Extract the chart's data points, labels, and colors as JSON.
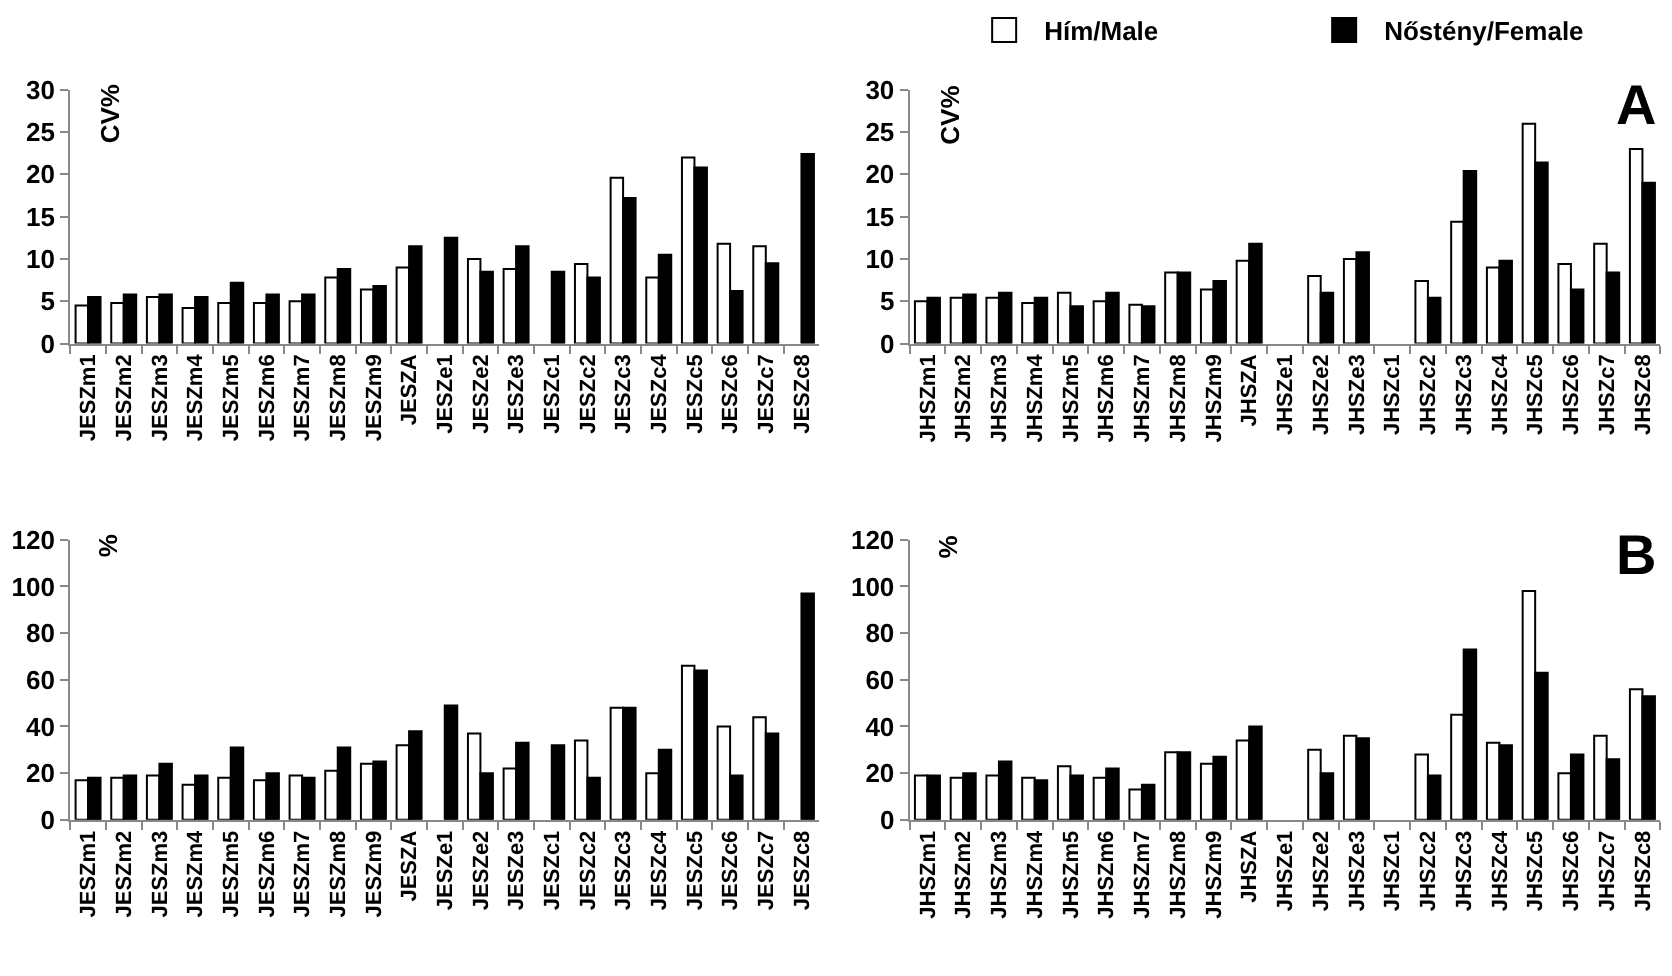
{
  "chart_data": [
    {
      "type": "bar",
      "ylabel": "CV%",
      "categories": [
        "JESZm1",
        "JESZm2",
        "JESZm3",
        "JESZm4",
        "JESZm5",
        "JESZm6",
        "JESZm7",
        "JESZm8",
        "JESZm9",
        "JESZA",
        "JESZe1",
        "JESZe2",
        "JESZe3",
        "JESZc1",
        "JESZc2",
        "JESZc3",
        "JESZc4",
        "JESZc5",
        "JESZc6",
        "JESZc7",
        "JESZc8"
      ],
      "series": [
        {
          "name": "Hím/Male",
          "color": "#ffffff",
          "values": [
            4.5,
            4.8,
            5.5,
            4.2,
            4.8,
            4.8,
            5.0,
            7.8,
            6.4,
            9.0,
            null,
            10.0,
            8.8,
            null,
            9.4,
            19.6,
            7.8,
            22.0,
            11.8,
            11.5,
            null
          ]
        },
        {
          "name": "Nőstény/Female",
          "color": "#000000",
          "values": [
            5.5,
            5.8,
            5.8,
            5.5,
            7.2,
            5.8,
            5.8,
            8.8,
            6.8,
            11.5,
            12.5,
            8.5,
            11.5,
            8.5,
            7.8,
            17.2,
            10.5,
            20.8,
            6.2,
            9.5,
            22.4
          ]
        }
      ],
      "ylim": [
        0,
        30
      ],
      "yticks": [
        0,
        5,
        10,
        15,
        20,
        25,
        30
      ],
      "grid": false,
      "legend": "top"
    },
    {
      "type": "bar",
      "ylabel": "CV%",
      "annotations": [
        "A"
      ],
      "categories": [
        "JHSZm1",
        "JHSZm2",
        "JHSZm3",
        "JHSZm4",
        "JHSZm5",
        "JHSZm6",
        "JHSZm7",
        "JHSZm8",
        "JHSZm9",
        "JHSZA",
        "JHSZe1",
        "JHSZe2",
        "JHSZe3",
        "JHSZc1",
        "JHSZc2",
        "JHSZc3",
        "JHSZc4",
        "JHSZc5",
        "JHSZc6",
        "JHSZc7",
        "JHSZc8"
      ],
      "series": [
        {
          "color": "#ffffff",
          "values": [
            5.0,
            5.4,
            5.4,
            4.8,
            6.0,
            5.0,
            4.6,
            8.4,
            6.4,
            9.8,
            null,
            8.0,
            10.0,
            null,
            7.4,
            14.4,
            9.0,
            26.0,
            9.4,
            11.8,
            23.0
          ]
        },
        {
          "color": "#000000",
          "values": [
            5.4,
            5.8,
            6.0,
            5.4,
            4.4,
            6.0,
            4.4,
            8.4,
            7.4,
            11.8,
            null,
            6.0,
            10.8,
            null,
            5.4,
            20.4,
            9.8,
            21.4,
            6.4,
            8.4,
            19.0
          ]
        }
      ],
      "ylim": [
        0,
        30
      ],
      "yticks": [
        0,
        5,
        10,
        15,
        20,
        25,
        30
      ],
      "grid": false
    },
    {
      "type": "bar",
      "ylabel": "%",
      "categories": [
        "JESZm1",
        "JESZm2",
        "JESZm3",
        "JESZm4",
        "JESZm5",
        "JESZm6",
        "JESZm7",
        "JESZm8",
        "JESZm9",
        "JESZA",
        "JESZe1",
        "JESZe2",
        "JESZe3",
        "JESZc1",
        "JESZc2",
        "JESZc3",
        "JESZc4",
        "JESZc5",
        "JESZc6",
        "JESZc7",
        "JESZc8"
      ],
      "series": [
        {
          "color": "#ffffff",
          "values": [
            17,
            18,
            19,
            15,
            18,
            17,
            19,
            21,
            24,
            32,
            null,
            37,
            22,
            null,
            34,
            48,
            20,
            66,
            40,
            44,
            null
          ]
        },
        {
          "color": "#000000",
          "values": [
            18,
            19,
            24,
            19,
            31,
            20,
            18,
            31,
            25,
            38,
            49,
            20,
            33,
            32,
            18,
            48,
            30,
            64,
            19,
            37,
            97
          ]
        }
      ],
      "ylim": [
        0,
        120
      ],
      "yticks": [
        0,
        20,
        40,
        60,
        80,
        100,
        120
      ],
      "grid": false
    },
    {
      "type": "bar",
      "ylabel": "%",
      "annotations": [
        "B"
      ],
      "categories": [
        "JHSZm1",
        "JHSZm2",
        "JHSZm3",
        "JHSZm4",
        "JHSZm5",
        "JHSZm6",
        "JHSZm7",
        "JHSZm8",
        "JHSZm9",
        "JHSZA",
        "JHSZe1",
        "JHSZe2",
        "JHSZe3",
        "JHSZc1",
        "JHSZc2",
        "JHSZc3",
        "JHSZc4",
        "JHSZc5",
        "JHSZc6",
        "JHSZc7",
        "JHSZc8"
      ],
      "series": [
        {
          "color": "#ffffff",
          "values": [
            19,
            18,
            19,
            18,
            23,
            18,
            13,
            29,
            24,
            34,
            null,
            30,
            36,
            null,
            28,
            45,
            33,
            98,
            20,
            36,
            56
          ]
        },
        {
          "color": "#000000",
          "values": [
            19,
            20,
            25,
            17,
            19,
            22,
            15,
            29,
            27,
            40,
            null,
            20,
            35,
            null,
            19,
            73,
            32,
            63,
            28,
            26,
            53
          ]
        }
      ],
      "ylim": [
        0,
        120
      ],
      "yticks": [
        0,
        20,
        40,
        60,
        80,
        100,
        120
      ],
      "grid": false
    }
  ]
}
